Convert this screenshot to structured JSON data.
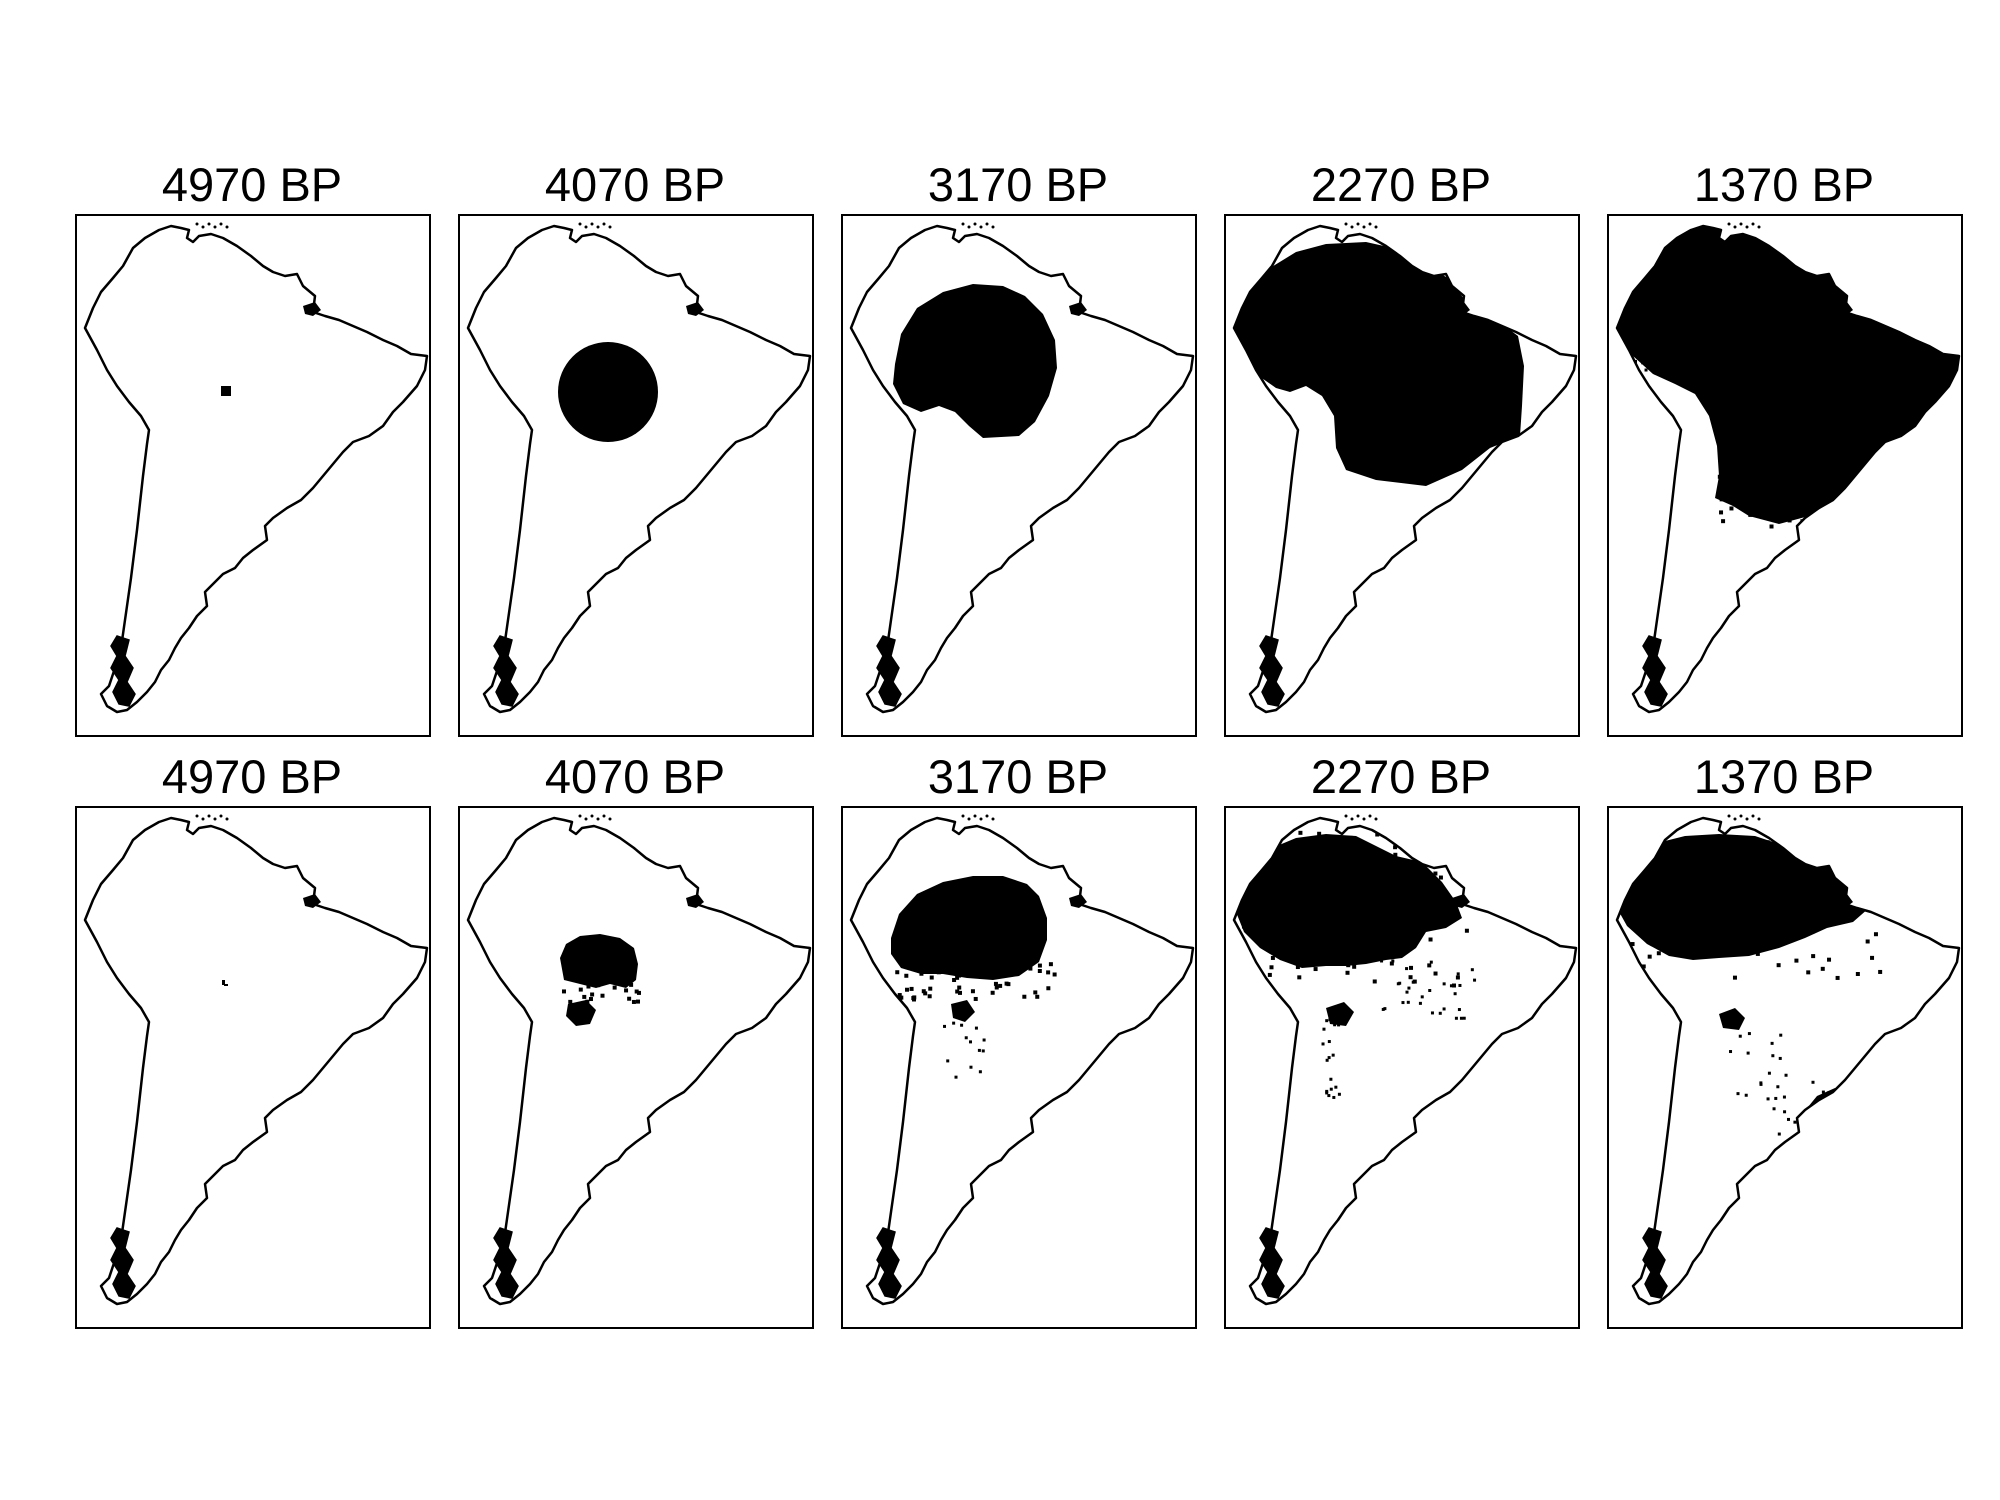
{
  "figure": {
    "rows": [
      {
        "panels": [
          {
            "title": "4970 BP",
            "pattern": "seed"
          },
          {
            "title": "4070 BP",
            "pattern": "disc"
          },
          {
            "title": "3170 BP",
            "pattern": "large-disc"
          },
          {
            "title": "2270 BP",
            "pattern": "most"
          },
          {
            "title": "1370 BP",
            "pattern": "full"
          }
        ]
      },
      {
        "panels": [
          {
            "title": "4970 BP",
            "pattern": "seed-sparse"
          },
          {
            "title": "4070 BP",
            "pattern": "disc-sparse"
          },
          {
            "title": "3170 BP",
            "pattern": "large-disc-sparse"
          },
          {
            "title": "2270 BP",
            "pattern": "amazon-sparse"
          },
          {
            "title": "1370 BP",
            "pattern": "amazon-plus-southeast"
          }
        ]
      }
    ],
    "colors": {
      "fill": "#000000",
      "outline": "#000000",
      "background": "#ffffff"
    }
  }
}
